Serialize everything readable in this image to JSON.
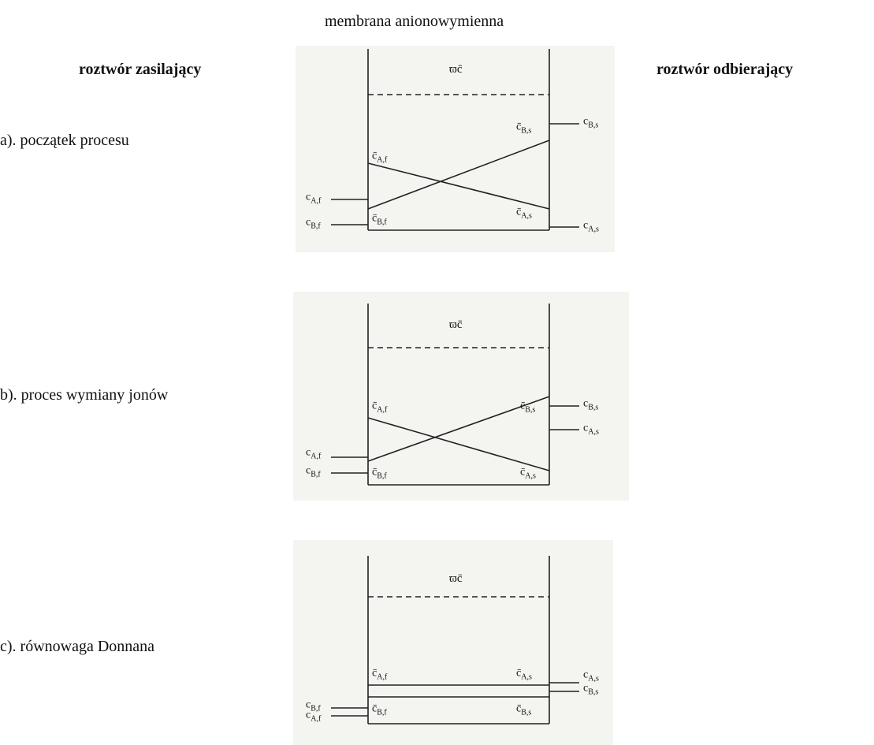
{
  "header": {
    "membrane": "membrana anionowymienna",
    "left": "roztwór zasilający",
    "right": "roztwór odbierający"
  },
  "panels": [
    {
      "label": "a). początek procesu",
      "omega": "ϖc̄",
      "labels": [
        {
          "main": "c̄",
          "sub": "A,f"
        },
        {
          "main": "c̄",
          "sub": "B,f"
        },
        {
          "main": "c̄",
          "sub": "B,s"
        },
        {
          "main": "c̄",
          "sub": "A,s"
        },
        {
          "main": "c",
          "sub": "A,f"
        },
        {
          "main": "c",
          "sub": "B,f"
        },
        {
          "main": "c",
          "sub": "B,s"
        },
        {
          "main": "c",
          "sub": "A,s"
        }
      ]
    },
    {
      "label": "b). proces wymiany jonów",
      "omega": "ϖc̄",
      "labels": [
        {
          "main": "c̄",
          "sub": "A,f"
        },
        {
          "main": "c̄",
          "sub": "B,f"
        },
        {
          "main": "c̄",
          "sub": "B,s"
        },
        {
          "main": "c̄",
          "sub": "A,s"
        },
        {
          "main": "c",
          "sub": "A,f"
        },
        {
          "main": "c",
          "sub": "B,f"
        },
        {
          "main": "c",
          "sub": "B,s"
        },
        {
          "main": "c",
          "sub": "A,s"
        }
      ]
    },
    {
      "label": "c). równowaga Donnana",
      "omega": "ϖc̄",
      "labels": [
        {
          "main": "c̄",
          "sub": "A,f"
        },
        {
          "main": "c̄",
          "sub": "A,s"
        },
        {
          "main": "c̄",
          "sub": "B,f"
        },
        {
          "main": "c̄",
          "sub": "B,s"
        },
        {
          "main": "c",
          "sub": "B,f"
        },
        {
          "main": "c",
          "sub": "A,f"
        },
        {
          "main": "c",
          "sub": "A,s"
        },
        {
          "main": "c",
          "sub": "B,s"
        }
      ]
    }
  ]
}
